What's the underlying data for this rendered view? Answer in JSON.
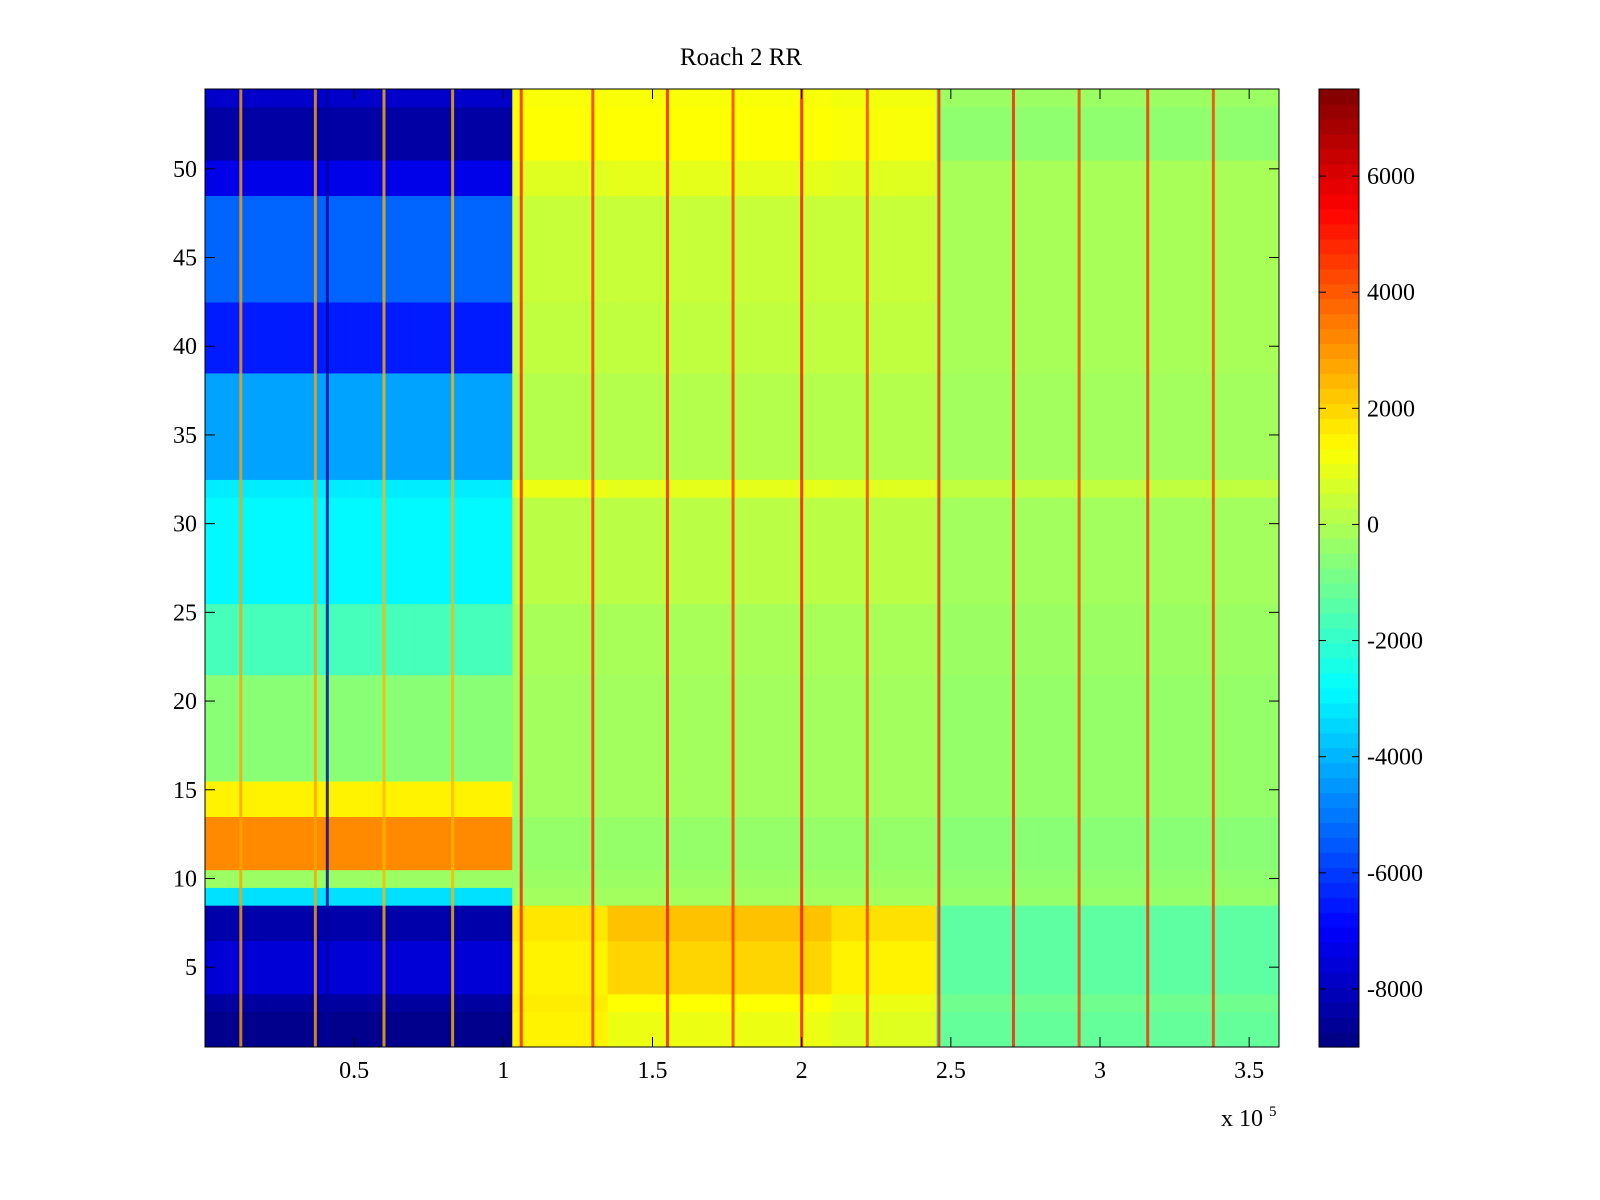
{
  "chart_data": {
    "type": "heatmap",
    "title": "Roach 2 RR",
    "xlabel": "",
    "ylabel": "",
    "x_multiplier_label": "x 10",
    "x_multiplier_exponent": "5",
    "xlim": [
      0,
      360000
    ],
    "ylim": [
      0.5,
      54.5
    ],
    "x_ticks": [
      50000,
      100000,
      150000,
      200000,
      250000,
      300000,
      350000
    ],
    "x_tick_labels": [
      "0.5",
      "1",
      "1.5",
      "2",
      "2.5",
      "3",
      "3.5"
    ],
    "y_ticks": [
      5,
      10,
      15,
      20,
      25,
      30,
      35,
      40,
      45,
      50
    ],
    "y_tick_labels": [
      "5",
      "10",
      "15",
      "20",
      "25",
      "30",
      "35",
      "40",
      "45",
      "50"
    ],
    "colorbar": {
      "colormap": "jet",
      "clim": [
        -9000,
        7500
      ],
      "ticks": [
        6000,
        4000,
        2000,
        0,
        -2000,
        -4000,
        -6000,
        -8000
      ],
      "tick_labels": [
        "6000",
        "4000",
        "2000",
        "0",
        "-2000",
        "-4000",
        "-6000",
        "-8000"
      ]
    },
    "rows": 54,
    "x_segment_edges": [
      0,
      103000,
      135000,
      210000,
      245000,
      360000
    ],
    "row_profiles": [
      {
        "rows": [
          1,
          2
        ],
        "segment_values": [
          -8800,
          1500,
          1000,
          800,
          -1200,
          -400
        ]
      },
      {
        "rows": [
          3,
          3
        ],
        "segment_values": [
          -8500,
          1600,
          1300,
          1000,
          -1000,
          -300
        ]
      },
      {
        "rows": [
          4,
          6
        ],
        "segment_values": [
          -7600,
          1500,
          2000,
          1500,
          -1300,
          -400
        ]
      },
      {
        "rows": [
          7,
          8
        ],
        "segment_values": [
          -8300,
          1700,
          2300,
          1800,
          -1300,
          -500
        ]
      },
      {
        "rows": [
          9,
          9
        ],
        "segment_values": [
          -3300,
          -200,
          -200,
          -200,
          -400,
          -400
        ]
      },
      {
        "rows": [
          10,
          10
        ],
        "segment_values": [
          -300,
          -300,
          -300,
          -300,
          -500,
          -500
        ]
      },
      {
        "rows": [
          11,
          13
        ],
        "segment_values": [
          3200,
          -400,
          -400,
          -400,
          -600,
          -600
        ]
      },
      {
        "rows": [
          14,
          15
        ],
        "segment_values": [
          1500,
          -200,
          -200,
          -200,
          -400,
          -400
        ]
      },
      {
        "rows": [
          16,
          21
        ],
        "segment_values": [
          -600,
          -200,
          -200,
          -200,
          -400,
          -300
        ]
      },
      {
        "rows": [
          22,
          25
        ],
        "segment_values": [
          -1700,
          -100,
          -100,
          -100,
          -300,
          -300
        ]
      },
      {
        "rows": [
          26,
          31
        ],
        "segment_values": [
          -2900,
          200,
          200,
          200,
          -200,
          -200
        ]
      },
      {
        "rows": [
          32,
          32
        ],
        "segment_values": [
          -3100,
          1000,
          900,
          800,
          300,
          200
        ]
      },
      {
        "rows": [
          33,
          38
        ],
        "segment_values": [
          -4300,
          100,
          100,
          100,
          -200,
          -200
        ]
      },
      {
        "rows": [
          39,
          42
        ],
        "segment_values": [
          -6500,
          300,
          300,
          300,
          -100,
          -100
        ]
      },
      {
        "rows": [
          43,
          48
        ],
        "segment_values": [
          -5300,
          400,
          400,
          400,
          -100,
          -100
        ]
      },
      {
        "rows": [
          49,
          50
        ],
        "segment_values": [
          -7300,
          800,
          900,
          800,
          -100,
          -100
        ]
      },
      {
        "rows": [
          51,
          53
        ],
        "segment_values": [
          -8400,
          1300,
          1300,
          1200,
          -500,
          -300
        ]
      },
      {
        "rows": [
          54,
          54
        ],
        "segment_values": [
          -7800,
          1200,
          1200,
          1100,
          -300,
          -200
        ]
      }
    ],
    "vertical_spikes": [
      {
        "x": 12000,
        "value": 2800
      },
      {
        "x": 37000,
        "value": 2800
      },
      {
        "x": 41000,
        "value": -8500
      },
      {
        "x": 60000,
        "value": 2500
      },
      {
        "x": 83000,
        "value": 2500
      },
      {
        "x": 106000,
        "value": 5000
      },
      {
        "x": 130000,
        "value": 4800
      },
      {
        "x": 155000,
        "value": 5200
      },
      {
        "x": 177000,
        "value": 4600
      },
      {
        "x": 200000,
        "value": 5200
      },
      {
        "x": 222000,
        "value": 4600
      },
      {
        "x": 246000,
        "value": 5000
      },
      {
        "x": 271000,
        "value": 5000
      },
      {
        "x": 293000,
        "value": 4500
      },
      {
        "x": 316000,
        "value": 4800
      },
      {
        "x": 338000,
        "value": 4500
      }
    ]
  }
}
